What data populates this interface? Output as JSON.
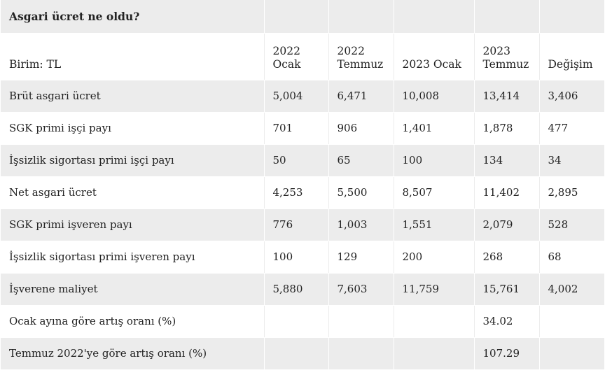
{
  "table": {
    "title": "Asgari ücret ne oldu?",
    "headers": [
      "Birim: TL",
      "2022\nOcak",
      "2022\nTemmuz",
      "2023 Ocak",
      "2023\nTemmuz",
      "Değişim"
    ],
    "rows": [
      [
        "Brüt asgari ücret",
        "5,004",
        "6,471",
        "10,008",
        "13,414",
        "3,406"
      ],
      [
        "SGK primi işçi payı",
        "701",
        "906",
        "1,401",
        "1,878",
        "477"
      ],
      [
        "İşsizlik sigortası primi işçi payı",
        "50",
        "65",
        "100",
        "134",
        "34"
      ],
      [
        "Net asgari ücret",
        "4,253",
        "5,500",
        "8,507",
        "11,402",
        "2,895"
      ],
      [
        "SGK primi işveren payı",
        "776",
        "1,003",
        "1,551",
        "2,079",
        "528"
      ],
      [
        "İşsizlik sigortası primi işveren payı",
        "100",
        "129",
        "200",
        "268",
        "68"
      ],
      [
        "İşverene maliyet",
        "5,880",
        "7,603",
        "11,759",
        "15,761",
        "4,002"
      ],
      [
        "Ocak ayına göre artış oranı (%)",
        "",
        "",
        "",
        "34.02",
        ""
      ],
      [
        "Temmuz 2022'ye göre artış oranı (%)",
        "",
        "",
        "",
        "107.29",
        ""
      ]
    ]
  }
}
